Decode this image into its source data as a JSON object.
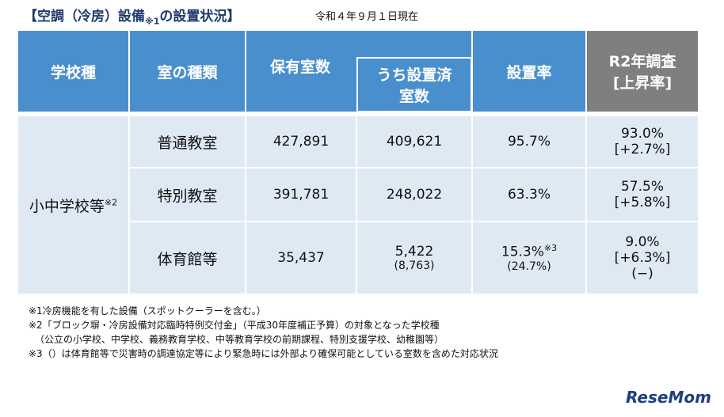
{
  "title": {
    "text": "【空調（冷房）設備",
    "sup": "※1",
    "rest": "の設置状況】"
  },
  "date": "令和４年９月１日現在",
  "table": {
    "headers": {
      "school_type": "学校種",
      "room_type": "室の種類",
      "owned": "保有室数",
      "installed": [
        "うち設置済",
        "室数"
      ],
      "rate": "設置率",
      "r2": [
        "R2年調査",
        "[上昇率]"
      ]
    },
    "school_type": "小中学校等",
    "school_type_note": "※2",
    "rows": [
      {
        "room": "普通教室",
        "owned": "427,891",
        "installed": "409,621",
        "rate": "95.7%",
        "r2": "93.0%",
        "r2_change": "[+2.7%]"
      },
      {
        "room": "特別教室",
        "owned": "391,781",
        "installed": "248,022",
        "rate": "63.3%",
        "r2": "57.5%",
        "r2_change": "[+5.8%]"
      },
      {
        "room": "体育館等",
        "owned": "35,437",
        "installed": "5,422",
        "installed_sub": "(8,763)",
        "rate": "15.3%",
        "rate_note": "※3",
        "rate_sub": "(24.7%)",
        "r2": "9.0%",
        "r2_change": "[+6.3%]",
        "r2_sub": "(−)"
      }
    ]
  },
  "footnotes": [
    "※1冷房機能を有した設備（スポットクーラーを含む。）",
    "※2「ブロック塀・冷房設備対応臨時特例交付金」（平成30年度補正予算）の対象となった学校種",
    "（公立の小学校、中学校、義務教育学校、中等教育学校の前期課程、特別支援学校、幼稚園等）",
    "※3（）は体育館等で災害時の調達協定等により緊急時には外部より確保可能としている室数を含めた対応状況"
  ],
  "logo": "ReseMom"
}
